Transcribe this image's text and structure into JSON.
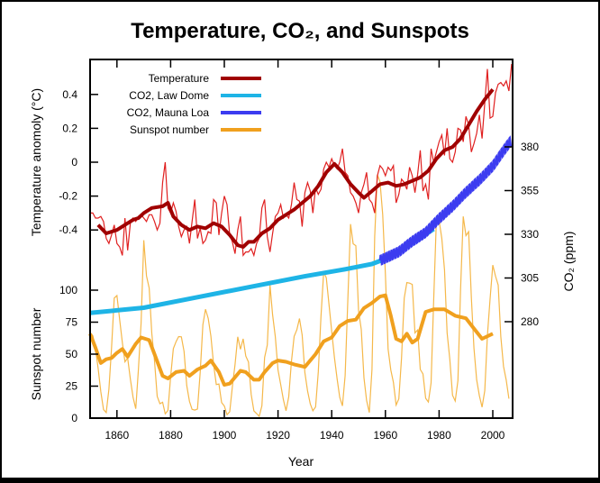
{
  "chart_data": {
    "type": "line",
    "title": "Temperature, CO₂, and Sunspots",
    "xlabel": "Year",
    "xlim": [
      1850,
      2007
    ],
    "xticks": [
      1860,
      1880,
      1900,
      1920,
      1940,
      1960,
      1980,
      2000
    ],
    "grid": false,
    "legend_position": "top-left",
    "axes": {
      "temperature": {
        "label": "Temperature anomoly (°C)",
        "ticks": [
          0.4,
          0.2,
          0,
          -0.2,
          -0.4
        ],
        "tick_labels": [
          "0.4",
          "0.2",
          "0",
          "-0.2",
          "-0.4"
        ]
      },
      "sunspot": {
        "label": "Sunspot number",
        "ticks": [
          100,
          75,
          50,
          25,
          0
        ],
        "tick_labels": [
          "100",
          "75",
          "50",
          "25",
          "0"
        ]
      },
      "co2": {
        "label": "CO₂ (ppm)",
        "ticks": [
          380,
          355,
          330,
          305,
          280
        ],
        "tick_labels": [
          "380",
          "355",
          "330",
          "305",
          "280"
        ]
      }
    },
    "series": [
      {
        "name": "Temperature",
        "axis": "temperature",
        "color": "#b00000",
        "smoothed": [
          [
            1853,
            -0.37
          ],
          [
            1856,
            -0.42
          ],
          [
            1860,
            -0.4
          ],
          [
            1863,
            -0.37
          ],
          [
            1866,
            -0.34
          ],
          [
            1868,
            -0.33
          ],
          [
            1870,
            -0.3
          ],
          [
            1873,
            -0.27
          ],
          [
            1877,
            -0.26
          ],
          [
            1879,
            -0.24
          ],
          [
            1881,
            -0.32
          ],
          [
            1884,
            -0.37
          ],
          [
            1887,
            -0.4
          ],
          [
            1890,
            -0.38
          ],
          [
            1893,
            -0.39
          ],
          [
            1896,
            -0.36
          ],
          [
            1899,
            -0.38
          ],
          [
            1902,
            -0.43
          ],
          [
            1905,
            -0.49
          ],
          [
            1907,
            -0.5
          ],
          [
            1909,
            -0.47
          ],
          [
            1911,
            -0.47
          ],
          [
            1914,
            -0.42
          ],
          [
            1917,
            -0.39
          ],
          [
            1920,
            -0.34
          ],
          [
            1923,
            -0.31
          ],
          [
            1926,
            -0.28
          ],
          [
            1929,
            -0.24
          ],
          [
            1932,
            -0.2
          ],
          [
            1935,
            -0.14
          ],
          [
            1938,
            -0.06
          ],
          [
            1941,
            -0.01
          ],
          [
            1944,
            -0.06
          ],
          [
            1947,
            -0.13
          ],
          [
            1950,
            -0.18
          ],
          [
            1952,
            -0.21
          ],
          [
            1955,
            -0.17
          ],
          [
            1958,
            -0.13
          ],
          [
            1961,
            -0.12
          ],
          [
            1964,
            -0.14
          ],
          [
            1967,
            -0.13
          ],
          [
            1970,
            -0.11
          ],
          [
            1973,
            -0.09
          ],
          [
            1976,
            -0.05
          ],
          [
            1979,
            0.02
          ],
          [
            1982,
            0.07
          ],
          [
            1985,
            0.09
          ],
          [
            1988,
            0.14
          ],
          [
            1991,
            0.22
          ],
          [
            1994,
            0.3
          ],
          [
            1997,
            0.37
          ],
          [
            2000,
            0.43
          ]
        ],
        "annual_start": 1850,
        "annual": [
          -0.3,
          -0.3,
          -0.33,
          -0.33,
          -0.32,
          -0.35,
          -0.45,
          -0.48,
          -0.43,
          -0.37,
          -0.48,
          -0.5,
          -0.55,
          -0.33,
          -0.52,
          -0.36,
          -0.33,
          -0.35,
          -0.32,
          -0.31,
          -0.33,
          -0.35,
          -0.31,
          -0.31,
          -0.35,
          -0.4,
          -0.36,
          -0.12,
          0.0,
          -0.27,
          -0.3,
          -0.24,
          -0.29,
          -0.38,
          -0.44,
          -0.4,
          -0.38,
          -0.48,
          -0.35,
          -0.22,
          -0.45,
          -0.39,
          -0.48,
          -0.46,
          -0.41,
          -0.42,
          -0.22,
          -0.24,
          -0.43,
          -0.3,
          -0.2,
          -0.25,
          -0.43,
          -0.47,
          -0.54,
          -0.4,
          -0.32,
          -0.55,
          -0.53,
          -0.53,
          -0.51,
          -0.55,
          -0.48,
          -0.45,
          -0.27,
          -0.22,
          -0.44,
          -0.53,
          -0.42,
          -0.32,
          -0.3,
          -0.25,
          -0.33,
          -0.31,
          -0.33,
          -0.25,
          -0.12,
          -0.22,
          -0.23,
          -0.38,
          -0.18,
          -0.12,
          -0.17,
          -0.3,
          -0.15,
          -0.19,
          -0.16,
          -0.04,
          0.0,
          -0.03,
          0.02,
          -0.02,
          -0.04,
          0.0,
          0.08,
          -0.06,
          -0.08,
          -0.18,
          -0.2,
          -0.24,
          -0.3,
          -0.18,
          -0.13,
          -0.06,
          -0.22,
          -0.24,
          -0.3,
          -0.08,
          -0.02,
          -0.04,
          -0.08,
          -0.03,
          -0.05,
          -0.02,
          -0.24,
          -0.19,
          -0.1,
          -0.12,
          -0.16,
          -0.03,
          -0.08,
          -0.18,
          -0.07,
          0.07,
          -0.17,
          -0.13,
          -0.22,
          0.08,
          0.0,
          0.06,
          0.12,
          0.16,
          0.04,
          0.2,
          0.02,
          0.0,
          0.06,
          0.2,
          0.19,
          0.12,
          0.27,
          0.22,
          0.06,
          0.11,
          0.17,
          0.28,
          0.14,
          0.35,
          0.55,
          0.26,
          0.27,
          0.41,
          0.46,
          0.47,
          0.45,
          0.48,
          0.42,
          0.58
        ]
      },
      {
        "name": "CO2, Law Dome",
        "axis": "co2",
        "color": "#1eb4e6",
        "points": [
          [
            1850,
            285
          ],
          [
            1870,
            288
          ],
          [
            1890,
            294
          ],
          [
            1910,
            300
          ],
          [
            1930,
            306
          ],
          [
            1945,
            310
          ],
          [
            1955,
            313
          ],
          [
            1960,
            316
          ],
          [
            1970,
            325
          ],
          [
            1978,
            333
          ]
        ]
      },
      {
        "name": "CO2, Mauna Loa",
        "axis": "co2",
        "color": "#3c3cf0",
        "seasonal_amplitude": 3,
        "points": [
          [
            1958,
            315
          ],
          [
            1965,
            320
          ],
          [
            1970,
            326
          ],
          [
            1975,
            331
          ],
          [
            1980,
            339
          ],
          [
            1985,
            346
          ],
          [
            1990,
            354
          ],
          [
            1995,
            361
          ],
          [
            2000,
            369
          ],
          [
            2005,
            380
          ],
          [
            2007,
            384
          ]
        ]
      },
      {
        "name": "Sunspot number",
        "axis": "sunspot",
        "color": "#f0a01e",
        "smoothed": [
          [
            1850,
            66
          ],
          [
            1852,
            55
          ],
          [
            1854,
            43
          ],
          [
            1856,
            46
          ],
          [
            1858,
            47
          ],
          [
            1860,
            51
          ],
          [
            1862,
            54
          ],
          [
            1864,
            48
          ],
          [
            1867,
            58
          ],
          [
            1869,
            63
          ],
          [
            1872,
            61
          ],
          [
            1874,
            50
          ],
          [
            1877,
            33
          ],
          [
            1879,
            31
          ],
          [
            1882,
            36
          ],
          [
            1885,
            37
          ],
          [
            1887,
            33
          ],
          [
            1890,
            38
          ],
          [
            1893,
            41
          ],
          [
            1895,
            45
          ],
          [
            1898,
            36
          ],
          [
            1900,
            26
          ],
          [
            1902,
            27
          ],
          [
            1904,
            32
          ],
          [
            1906,
            37
          ],
          [
            1908,
            36
          ],
          [
            1911,
            30
          ],
          [
            1913,
            30
          ],
          [
            1915,
            36
          ],
          [
            1918,
            43
          ],
          [
            1920,
            45
          ],
          [
            1923,
            44
          ],
          [
            1926,
            42
          ],
          [
            1930,
            40
          ],
          [
            1934,
            50
          ],
          [
            1937,
            60
          ],
          [
            1940,
            63
          ],
          [
            1943,
            72
          ],
          [
            1946,
            76
          ],
          [
            1949,
            77
          ],
          [
            1952,
            86
          ],
          [
            1955,
            90
          ],
          [
            1958,
            95
          ],
          [
            1960,
            96
          ],
          [
            1962,
            80
          ],
          [
            1964,
            62
          ],
          [
            1966,
            60
          ],
          [
            1968,
            66
          ],
          [
            1970,
            59
          ],
          [
            1972,
            62
          ],
          [
            1975,
            83
          ],
          [
            1978,
            85
          ],
          [
            1982,
            85
          ],
          [
            1986,
            80
          ],
          [
            1990,
            78
          ],
          [
            1993,
            70
          ],
          [
            1996,
            62
          ],
          [
            2000,
            66
          ]
        ],
        "annual_start": 1850,
        "annual": [
          66.5,
          64.5,
          54.1,
          39.0,
          20.6,
          6.7,
          4.3,
          22.7,
          54.8,
          93.8,
          95.8,
          77.2,
          59.1,
          44.0,
          47.0,
          30.5,
          16.3,
          7.3,
          37.6,
          74.0,
          139.0,
          111.2,
          101.6,
          66.2,
          44.7,
          17.0,
          11.3,
          12.4,
          3.4,
          6.0,
          32.3,
          54.3,
          59.7,
          63.7,
          63.5,
          52.2,
          25.4,
          13.1,
          6.8,
          6.3,
          7.1,
          35.6,
          73.0,
          85.1,
          78.0,
          64.0,
          41.8,
          26.2,
          26.7,
          12.1,
          9.5,
          2.7,
          5.0,
          24.4,
          42.0,
          63.5,
          53.8,
          62.0,
          48.5,
          43.9,
          18.6,
          5.7,
          3.6,
          1.4,
          9.6,
          47.4,
          57.1,
          103.9,
          80.6,
          63.6,
          37.6,
          26.1,
          14.2,
          5.8,
          16.7,
          44.3,
          63.9,
          69.0,
          77.8,
          64.9,
          35.7,
          21.2,
          11.1,
          5.7,
          8.7,
          36.1,
          79.7,
          114.4,
          109.6,
          88.8,
          67.8,
          47.5,
          30.6,
          16.3,
          9.6,
          33.2,
          92.6,
          151.6,
          136.3,
          134.7,
          83.9,
          69.4,
          31.5,
          13.9,
          4.4,
          38.0,
          141.7,
          190.2,
          184.8,
          159.0,
          112.3,
          53.9,
          37.6,
          27.9,
          10.2,
          15.1,
          47.0,
          93.8,
          105.9,
          105.5,
          104.5,
          66.6,
          68.9,
          38.0,
          34.5,
          15.5,
          12.6,
          27.5,
          92.5,
          155.4,
          154.6,
          140.4,
          115.9,
          66.6,
          45.9,
          17.9,
          13.4,
          29.4,
          100.2,
          157.6,
          142.6,
          145.7,
          94.3,
          54.6,
          29.9,
          17.5,
          8.6,
          21.5,
          64.3,
          93.3,
          119.6,
          111.0,
          104.0,
          63.7,
          40.4,
          29.8,
          15.2
        ]
      }
    ]
  }
}
